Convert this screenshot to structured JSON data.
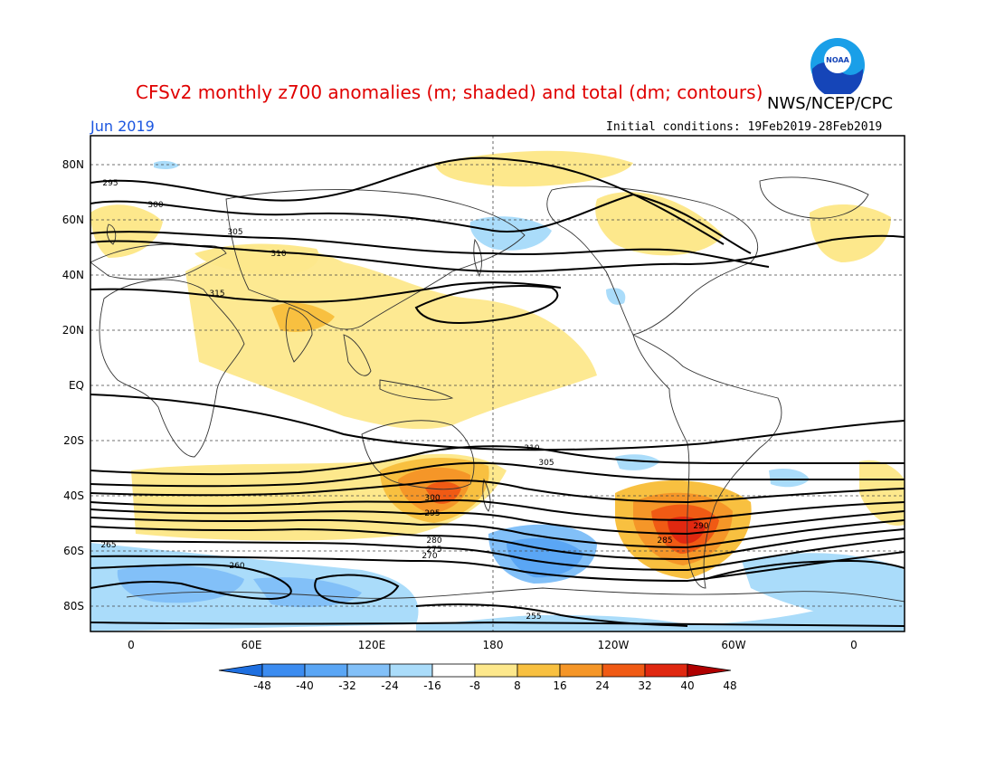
{
  "header": {
    "title": "CFSv2 monthly z700 anomalies (m; shaded) and total (dm; contours)",
    "agency": "NWS/NCEP/CPC",
    "period": "Jun 2019",
    "initial_conditions": "Initial conditions: 19Feb2019-28Feb2019",
    "logo_text": "NOAA"
  },
  "map": {
    "lat_labels": [
      "80N",
      "60N",
      "40N",
      "20N",
      "EQ",
      "20S",
      "40S",
      "60S",
      "80S"
    ],
    "lon_labels": [
      "0",
      "60E",
      "120E",
      "180",
      "120W",
      "60W",
      "0"
    ],
    "contour_labels": [
      "295",
      "300",
      "305",
      "310",
      "315",
      "310",
      "305",
      "300",
      "295",
      "290",
      "285",
      "280",
      "275",
      "270",
      "265",
      "260",
      "255"
    ]
  },
  "colorbar": {
    "ticks": [
      "-48",
      "-40",
      "-32",
      "-24",
      "-16",
      "-8",
      "8",
      "16",
      "24",
      "32",
      "40",
      "48"
    ],
    "colors": [
      "#1e6fe0",
      "#3c8cf0",
      "#5aa6f5",
      "#82c0f8",
      "#aadcfa",
      "#ffffff",
      "#fde88c",
      "#f8c040",
      "#f59628",
      "#f05a14",
      "#e02810",
      "#b00000"
    ]
  }
}
